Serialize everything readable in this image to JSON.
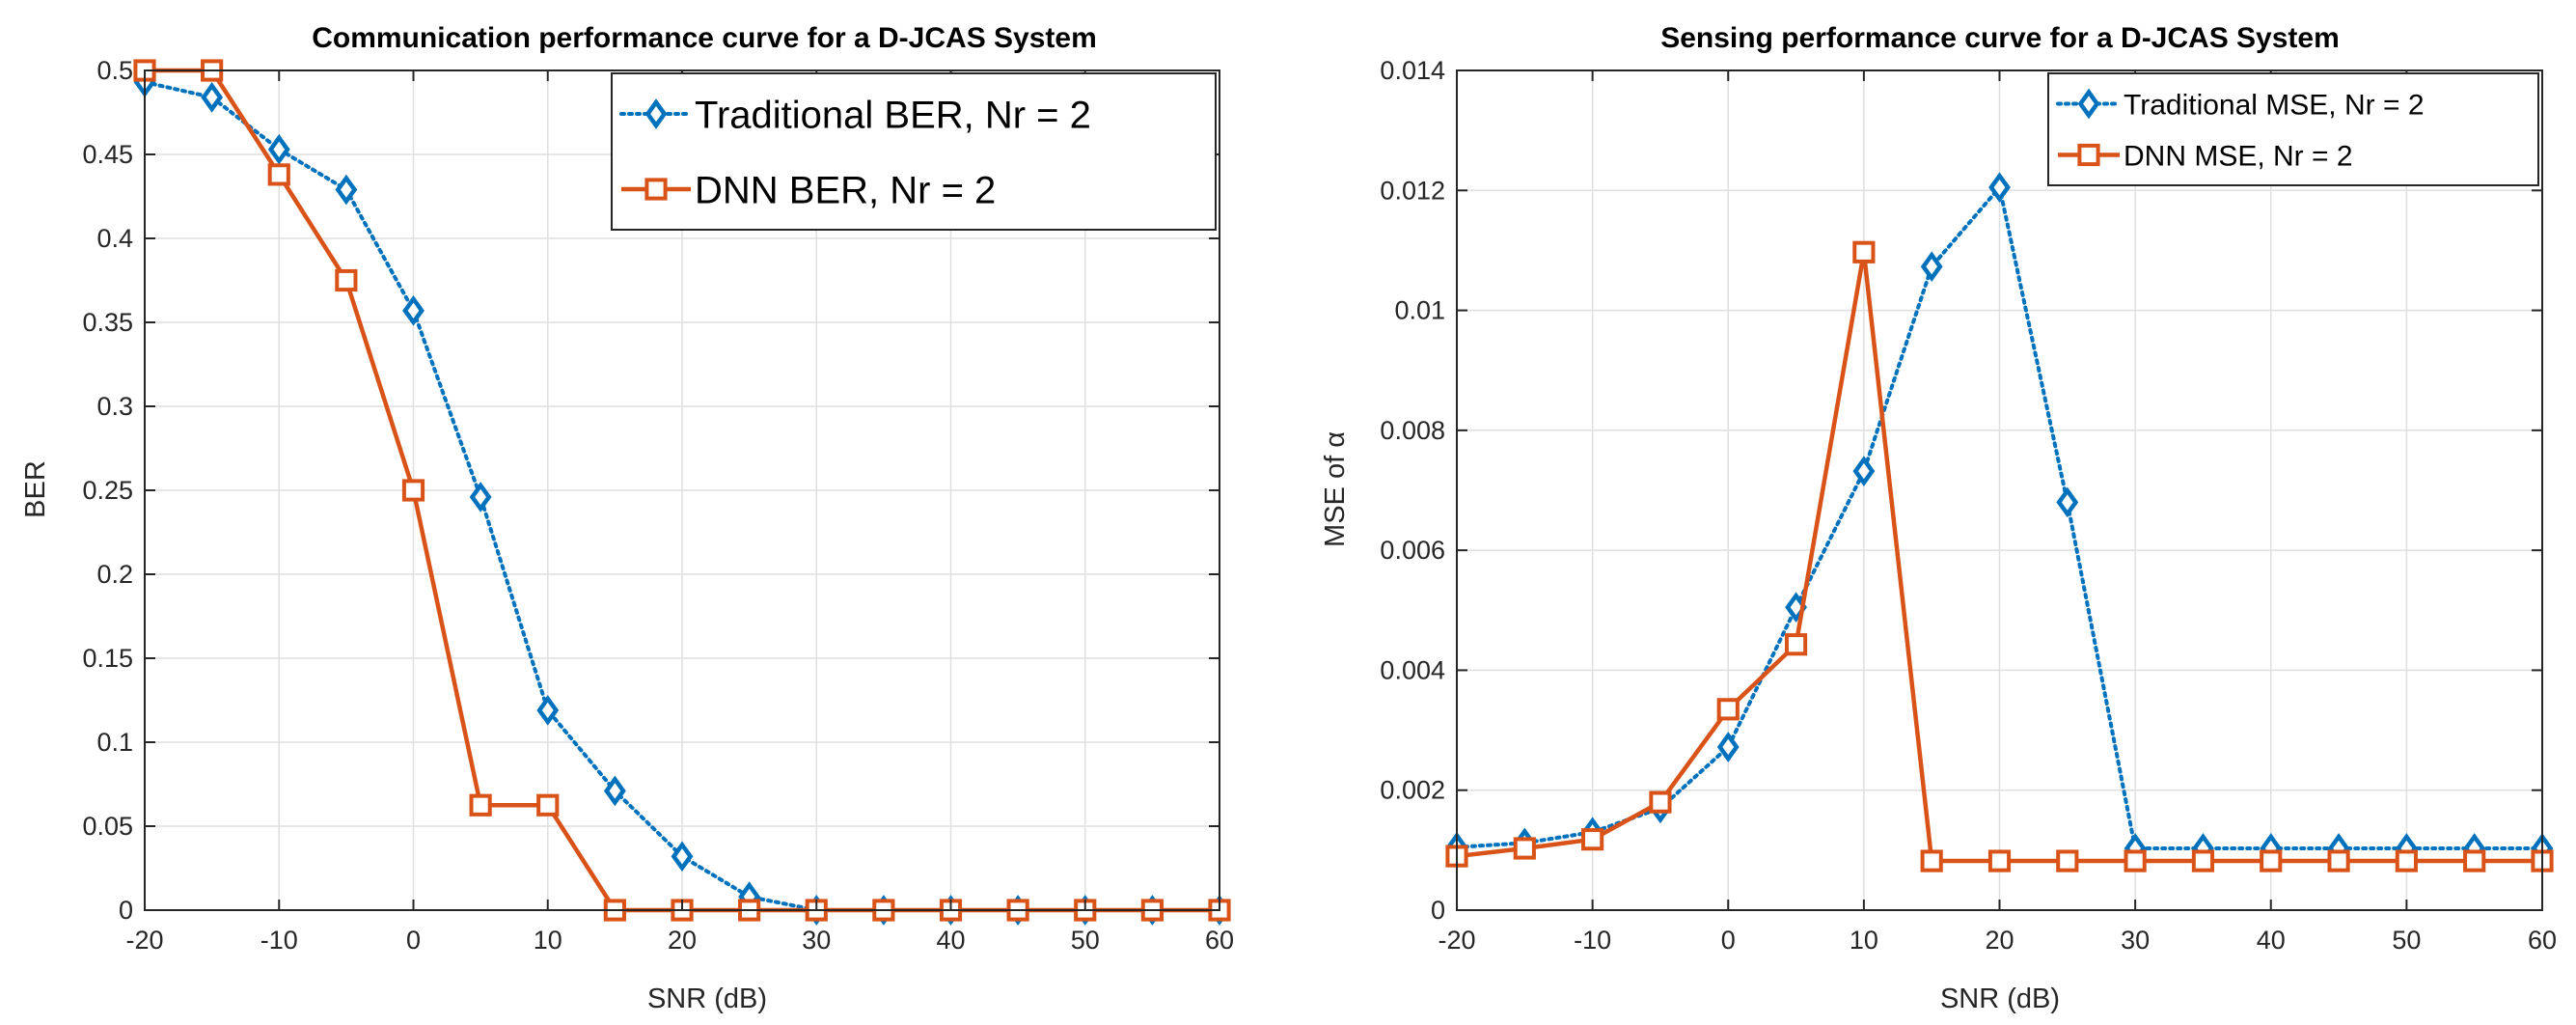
{
  "colors": {
    "traditional": "#0072BD",
    "dnn": "#D95319",
    "grid": "#dfdfdf",
    "axis": "#262626"
  },
  "chart_data": [
    {
      "type": "line",
      "title": "Communication performance curve for a D-JCAS System",
      "xlabel": "SNR (dB)",
      "ylabel": "BER",
      "xlim": [
        -20,
        60
      ],
      "ylim": [
        0,
        0.5
      ],
      "xticks": [
        -20,
        -10,
        0,
        10,
        20,
        30,
        40,
        50,
        60
      ],
      "xtick_labels": [
        "-20",
        "-10",
        "0",
        "10",
        "20",
        "30",
        "40",
        "50",
        "60"
      ],
      "yticks": [
        0,
        0.05,
        0.1,
        0.15,
        0.2,
        0.25,
        0.3,
        0.35,
        0.4,
        0.45,
        0.5
      ],
      "ytick_labels": [
        "0",
        "0.05",
        "0.1",
        "0.15",
        "0.2",
        "0.25",
        "0.3",
        "0.35",
        "0.4",
        "0.45",
        "0.5"
      ],
      "grid": true,
      "legend_position": "top-right",
      "x": [
        -20,
        -15,
        -10,
        -5,
        0,
        5,
        10,
        15,
        20,
        25,
        30,
        35,
        40,
        45,
        50,
        55,
        60
      ],
      "series": [
        {
          "name": "Traditional BER, Nr = 2",
          "style": "dotted",
          "marker": "diamond",
          "color": "#0072BD",
          "values": [
            0.493,
            0.484,
            0.453,
            0.429,
            0.357,
            0.246,
            0.119,
            0.071,
            0.032,
            0.008,
            0.0,
            0.0,
            0.0,
            0.0,
            0.0,
            0.0,
            0.0
          ]
        },
        {
          "name": "DNN BER, Nr = 2",
          "style": "solid",
          "marker": "square",
          "color": "#D95319",
          "values": [
            0.5,
            0.5,
            0.438,
            0.375,
            0.25,
            0.0625,
            0.0625,
            0.0,
            0.0,
            0.0,
            0.0,
            0.0,
            0.0,
            0.0,
            0.0,
            0.0,
            0.0
          ]
        }
      ]
    },
    {
      "type": "line",
      "title": "Sensing performance curve for a D-JCAS System",
      "xlabel": "SNR (dB)",
      "ylabel": "MSE of α",
      "xlim": [
        -20,
        60
      ],
      "ylim": [
        0,
        0.014
      ],
      "xticks": [
        -20,
        -10,
        0,
        10,
        20,
        30,
        40,
        50,
        60
      ],
      "xtick_labels": [
        "-20",
        "-10",
        "0",
        "10",
        "20",
        "30",
        "40",
        "50",
        "60"
      ],
      "yticks": [
        0,
        0.002,
        0.004,
        0.006,
        0.008,
        0.01,
        0.012,
        0.014
      ],
      "ytick_labels": [
        "0",
        "0.002",
        "0.004",
        "0.006",
        "0.008",
        "0.01",
        "0.012",
        "0.014"
      ],
      "grid": true,
      "legend_position": "top-right",
      "x": [
        -20,
        -15,
        -10,
        -5,
        0,
        5,
        10,
        15,
        20,
        25,
        30,
        35,
        40,
        45,
        50,
        55,
        60
      ],
      "series": [
        {
          "name": "Traditional MSE, Nr = 2",
          "style": "dotted",
          "marker": "diamond",
          "color": "#0072BD",
          "values": [
            0.00105,
            0.00112,
            0.0013,
            0.0017,
            0.00272,
            0.00505,
            0.00732,
            0.01073,
            0.01205,
            0.0068,
            0.00103,
            0.00103,
            0.00103,
            0.00103,
            0.00103,
            0.00103,
            0.00103
          ]
        },
        {
          "name": "DNN MSE, Nr = 2",
          "style": "solid",
          "marker": "square",
          "color": "#D95319",
          "values": [
            0.0009,
            0.00103,
            0.00118,
            0.0018,
            0.00335,
            0.00443,
            0.01097,
            0.00082,
            0.00082,
            0.00082,
            0.00082,
            0.00082,
            0.00082,
            0.00082,
            0.00082,
            0.00082,
            0.00082
          ]
        }
      ]
    }
  ]
}
